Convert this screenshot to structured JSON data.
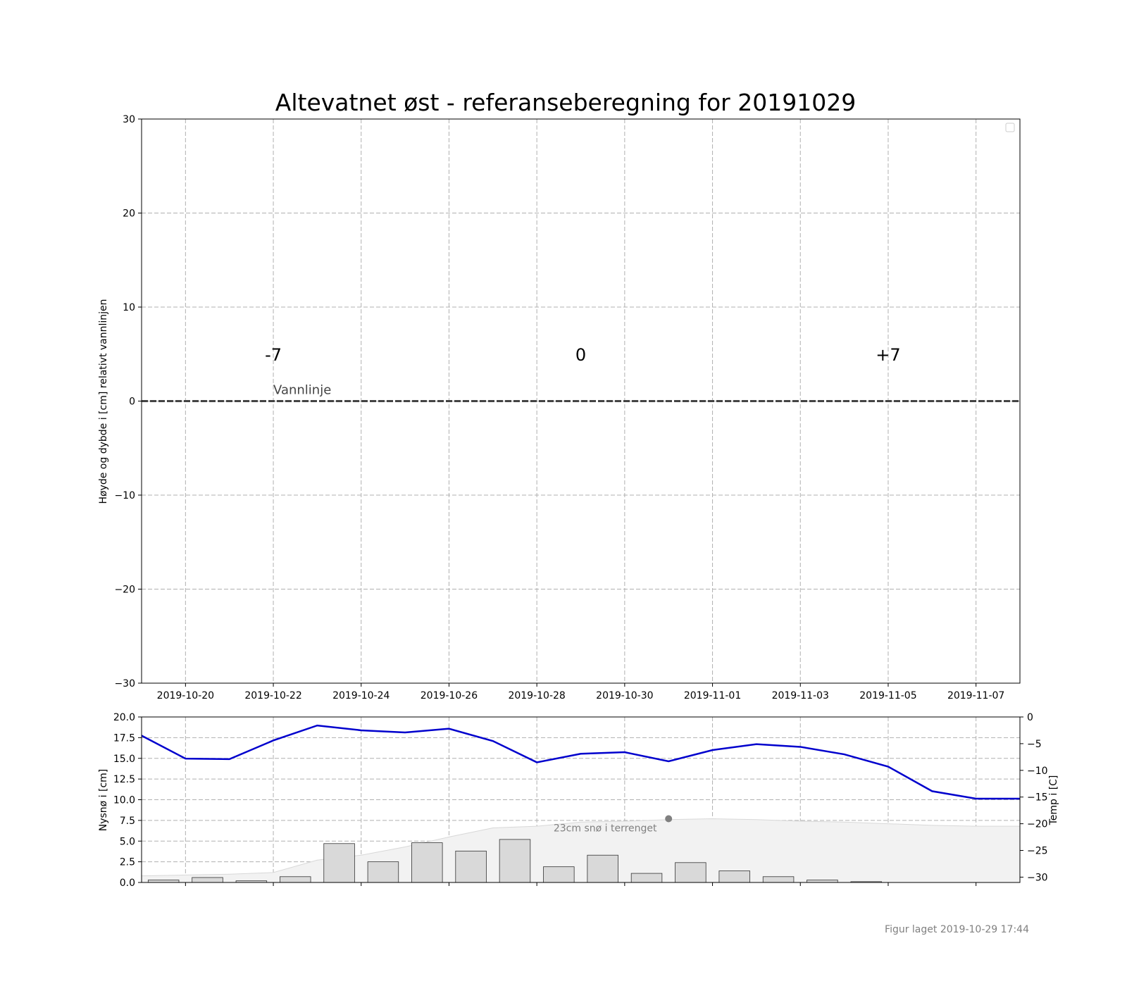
{
  "footer": "Figur laget 2019-10-29 17:44",
  "chart_data": [
    {
      "type": "line",
      "title": "Altevatnet øst - referanseberegning for 20191029",
      "ylabel": "Høyde og dybde i [cm] relativt vannlinjen",
      "xlabel": "",
      "x_range": [
        "2019-10-19",
        "2019-11-08"
      ],
      "ylim": [
        -30,
        30
      ],
      "yticks": [
        "30",
        "20",
        "10",
        "0",
        "−10",
        "−20",
        "−30"
      ],
      "ytick_values": [
        30,
        20,
        10,
        0,
        -10,
        -20,
        -30
      ],
      "xticks": [
        "2019-10-20",
        "2019-10-22",
        "2019-10-24",
        "2019-10-26",
        "2019-10-28",
        "2019-10-30",
        "2019-11-01",
        "2019-11-03",
        "2019-11-05",
        "2019-11-07"
      ],
      "grid": true,
      "legend": "top-right (empty)",
      "annotations": [
        {
          "text": "-7",
          "x": "2019-10-22",
          "y": 5
        },
        {
          "text": "0",
          "x": "2019-10-29",
          "y": 5
        },
        {
          "text": "+7",
          "x": "2019-11-05",
          "y": 5
        },
        {
          "text": "Vannlinje",
          "x": "2019-10-22",
          "y": 1.2
        }
      ],
      "series": [
        {
          "name": "Vannlinje",
          "x": [
            "2019-10-19",
            "2019-11-08"
          ],
          "values": [
            0,
            0
          ],
          "style": "dashed",
          "color": "#444444"
        }
      ]
    },
    {
      "type": "bar",
      "ylabel": "Nysnø i [cm]",
      "ylabel_right": "Temp i [C]",
      "ylim": [
        0,
        20
      ],
      "ylim_right": [
        -31,
        0
      ],
      "yticks": [
        "20.0",
        "17.5",
        "15.0",
        "12.5",
        "10.0",
        "7.5",
        "5.0",
        "2.5",
        "0.0"
      ],
      "ytick_values": [
        20,
        17.5,
        15,
        12.5,
        10,
        7.5,
        5,
        2.5,
        0
      ],
      "yticks_right": [
        "0",
        "−5",
        "−10",
        "−15",
        "−20",
        "−25",
        "−30"
      ],
      "ytick_values_right": [
        0,
        -5,
        -10,
        -15,
        -20,
        -25,
        -30
      ],
      "grid": true,
      "dates": [
        "2019-10-19",
        "2019-10-20",
        "2019-10-21",
        "2019-10-22",
        "2019-10-23",
        "2019-10-24",
        "2019-10-25",
        "2019-10-26",
        "2019-10-27",
        "2019-10-28",
        "2019-10-29",
        "2019-10-30",
        "2019-10-31",
        "2019-11-01",
        "2019-11-02",
        "2019-11-03",
        "2019-11-04",
        "2019-11-05",
        "2019-11-06",
        "2019-11-07",
        "2019-11-08"
      ],
      "new_snow_cm": [
        0.3,
        0.6,
        0.2,
        0.7,
        4.7,
        2.5,
        4.8,
        3.8,
        5.2,
        1.9,
        3.3,
        1.1,
        2.4,
        1.4,
        0.7,
        0.3,
        0.1,
        0,
        0,
        0,
        0
      ],
      "snow_depth_cm": [
        0.8,
        0.9,
        1.0,
        1.2,
        2.7,
        3.3,
        4.3,
        5.5,
        6.6,
        6.8,
        7.3,
        7.4,
        7.6,
        7.7,
        7.6,
        7.4,
        7.3,
        7.1,
        6.9,
        6.8,
        6.8
      ],
      "temperature_c": [
        -3.5,
        -7.8,
        -7.9,
        -4.4,
        -1.6,
        -2.5,
        -2.9,
        -2.2,
        -4.5,
        -8.5,
        -6.9,
        -6.6,
        -8.3,
        -6.2,
        -5.1,
        -5.6,
        -7.0,
        -9.3,
        -13.9,
        -15.3,
        -15.3
      ],
      "annotations": [
        {
          "text": "23cm snø i terrenget",
          "x": "2019-10-31",
          "y": 7.7
        }
      ],
      "colors": {
        "bars": "#d9d9d9",
        "snow_area": "#f2f2f2",
        "temperature": "#0000cd",
        "marker": "#808080"
      }
    }
  ]
}
